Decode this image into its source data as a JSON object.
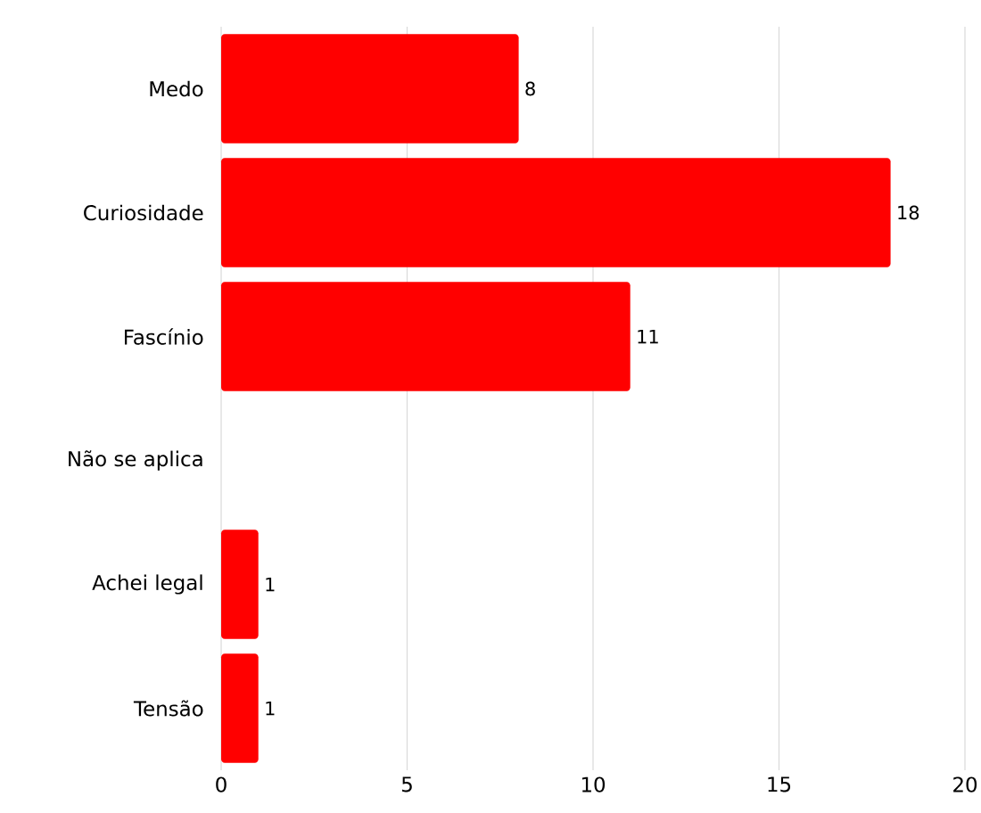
{
  "chart_data": {
    "type": "bar",
    "orientation": "horizontal",
    "categories": [
      "Medo",
      "Curiosidade",
      "Fascínio",
      "Não se aplica",
      "Achei legal",
      "Tensão"
    ],
    "values": [
      8,
      18,
      11,
      0,
      1,
      1
    ],
    "value_labels": [
      "8",
      "18",
      "11",
      null,
      "1",
      "1"
    ],
    "color": "#ff0000",
    "xlim": [
      0,
      20
    ],
    "xticks": [
      0,
      5,
      10,
      15,
      20
    ],
    "grid": "x"
  }
}
